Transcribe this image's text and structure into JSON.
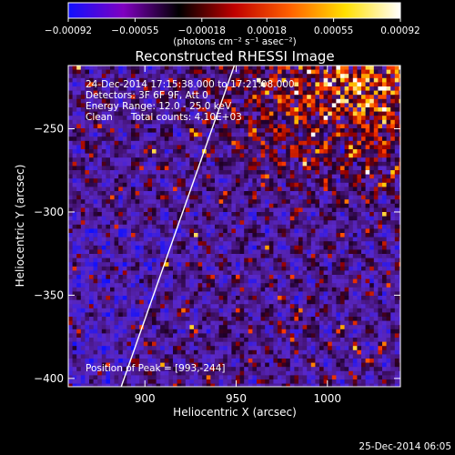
{
  "chart_data": {
    "type": "heatmap",
    "title": "Reconstructed RHESSI Image",
    "xlabel": "Heliocentric X (arcsec)",
    "ylabel": "Heliocentric Y (arcsec)",
    "xlim": [
      858,
      1040
    ],
    "ylim": [
      -405,
      -212
    ],
    "x_ticks": [
      900,
      950,
      1000
    ],
    "y_ticks": [
      -250,
      -300,
      -350,
      -400
    ],
    "x_tick_labels": [
      "900",
      "950",
      "1000"
    ],
    "y_tick_labels": [
      "−250",
      "−300",
      "−350",
      "−400"
    ],
    "colorbar": {
      "range": [
        -0.00092,
        0.00092
      ],
      "ticks": [
        -0.00092,
        -0.00055,
        -0.00018,
        0.00018,
        0.00055,
        0.00092
      ],
      "tick_labels": [
        "−0.00092",
        "−0.00055",
        "−0.00018",
        "0.00018",
        "0.00055",
        "0.00092"
      ],
      "unit_label": "(photons cm⁻² s⁻¹ asec⁻²)",
      "colors": [
        "#1010ff",
        "#8000c0",
        "#000000",
        "#c00000",
        "#ff6000",
        "#ffe000",
        "#ffffff"
      ]
    },
    "annotations": [
      "24-Dec-2014 17:15:38.000 to 17:21:08.000",
      "Detectors: 3F 6F 9F, Att 0",
      "Energy Range: 12.0 - 25.0 keV",
      "Clean      Total counts: 4.10E+03"
    ],
    "peak_label": "Position of Peak = [993,-244]",
    "limb_line": {
      "points": [
        [
          887,
          -405
        ],
        [
          949,
          -212
        ]
      ],
      "color": "#ffffff"
    },
    "grid": false,
    "legend": "none"
  },
  "footer": {
    "timestamp": "25-Dec-2014 06:05"
  }
}
